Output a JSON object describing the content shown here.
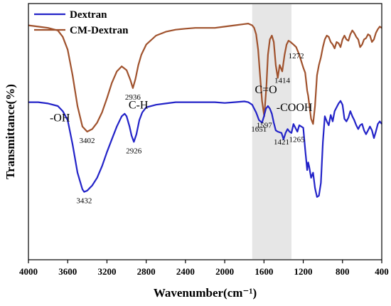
{
  "chart_data": {
    "type": "line",
    "title": "",
    "xlabel": "Wavenumber(cm⁻¹)",
    "ylabel": "Transmittance(%)",
    "xlim": [
      4000,
      400
    ],
    "x_reversed": true,
    "x_ticks": [
      4000,
      3600,
      3200,
      2800,
      2400,
      2000,
      1600,
      1200,
      800,
      400
    ],
    "y_axis": "arbitrary transmittance units, stacked curves, no numeric ticks",
    "ylim": [
      0,
      100
    ],
    "grid": false,
    "legend_position": "top-left",
    "highlight_band": {
      "x_from": 1720,
      "x_to": 1320,
      "color": "#e6e6e6"
    },
    "series": [
      {
        "name": "CM-Dextran",
        "color": "#a0522d",
        "x": [
          4000,
          3900,
          3800,
          3700,
          3650,
          3600,
          3550,
          3500,
          3450,
          3402,
          3350,
          3300,
          3250,
          3200,
          3150,
          3100,
          3050,
          3000,
          2960,
          2936,
          2910,
          2880,
          2850,
          2800,
          2700,
          2600,
          2500,
          2400,
          2300,
          2200,
          2100,
          2000,
          1900,
          1800,
          1760,
          1720,
          1700,
          1680,
          1660,
          1640,
          1620,
          1597,
          1575,
          1560,
          1540,
          1520,
          1500,
          1480,
          1460,
          1440,
          1414,
          1390,
          1370,
          1350,
          1330,
          1300,
          1272,
          1240,
          1200,
          1180,
          1160,
          1150,
          1120,
          1100,
          1080,
          1060,
          1040,
          1020,
          1000,
          980,
          960,
          940,
          920,
          900,
          880,
          860,
          840,
          820,
          800,
          780,
          760,
          740,
          720,
          700,
          680,
          660,
          640,
          620,
          600,
          580,
          560,
          540,
          520,
          500,
          480,
          460,
          440,
          420,
          400
        ],
        "y": [
          91.5,
          91.0,
          90.5,
          89.5,
          87.0,
          82.0,
          72.0,
          60.0,
          52.0,
          50.0,
          51.0,
          53.5,
          57.5,
          63.0,
          69.0,
          73.5,
          75.5,
          74.0,
          70.0,
          67.0,
          70.5,
          76.0,
          80.0,
          84.0,
          87.5,
          89.0,
          89.8,
          90.2,
          90.5,
          90.5,
          90.5,
          91.0,
          91.5,
          92.0,
          92.2,
          91.5,
          90.5,
          88.0,
          82.0,
          72.0,
          62.0,
          56.0,
          68.0,
          80.0,
          86.0,
          87.5,
          85.0,
          76.0,
          71.0,
          76.0,
          73.5,
          80.0,
          84.0,
          85.5,
          85.0,
          84.0,
          83.0,
          80.0,
          75.0,
          73.0,
          66.0,
          64.0,
          55.0,
          53.0,
          60.0,
          72.0,
          76.0,
          79.0,
          83.0,
          86.0,
          87.5,
          87.0,
          85.0,
          84.0,
          82.5,
          85.0,
          84.5,
          83.0,
          86.0,
          87.5,
          86.0,
          85.5,
          88.0,
          89.5,
          88.5,
          87.0,
          86.0,
          83.0,
          84.0,
          86.0,
          86.5,
          88.0,
          87.5,
          85.0,
          86.0,
          88.5,
          90.0,
          91.0,
          90.5
        ]
      },
      {
        "name": "Dextran",
        "color": "#2323c8",
        "x": [
          4000,
          3900,
          3800,
          3700,
          3650,
          3600,
          3550,
          3500,
          3450,
          3432,
          3400,
          3350,
          3300,
          3250,
          3200,
          3150,
          3100,
          3050,
          3020,
          3000,
          2970,
          2950,
          2926,
          2900,
          2870,
          2840,
          2800,
          2700,
          2600,
          2500,
          2400,
          2300,
          2200,
          2100,
          2000,
          1900,
          1800,
          1760,
          1720,
          1700,
          1680,
          1651,
          1620,
          1600,
          1580,
          1560,
          1540,
          1520,
          1500,
          1480,
          1460,
          1421,
          1400,
          1380,
          1360,
          1340,
          1320,
          1300,
          1280,
          1260,
          1240,
          1200,
          1180,
          1160,
          1150,
          1140,
          1120,
          1100,
          1080,
          1060,
          1040,
          1020,
          1000,
          980,
          960,
          940,
          920,
          900,
          880,
          860,
          840,
          820,
          800,
          780,
          760,
          740,
          720,
          700,
          680,
          660,
          640,
          620,
          600,
          580,
          560,
          540,
          520,
          500,
          480,
          460,
          440,
          420,
          400
        ],
        "y": [
          61.5,
          61.5,
          61.0,
          60.0,
          58.0,
          54.5,
          45.0,
          34.0,
          27.5,
          26.5,
          27.0,
          29.0,
          32.0,
          36.5,
          42.0,
          47.0,
          52.0,
          56.0,
          57.0,
          56.0,
          52.0,
          48.5,
          46.0,
          49.0,
          54.5,
          57.5,
          59.5,
          60.5,
          61.0,
          61.5,
          61.5,
          61.5,
          61.5,
          61.5,
          61.2,
          61.5,
          61.8,
          61.5,
          60.5,
          59.0,
          57.5,
          54.5,
          53.5,
          56.0,
          59.0,
          60.0,
          59.0,
          57.0,
          53.5,
          50.5,
          50.0,
          49.5,
          47.0,
          49.5,
          51.0,
          50.0,
          49.5,
          53.0,
          51.5,
          50.0,
          52.5,
          51.5,
          43.0,
          35.0,
          38.0,
          36.5,
          32.0,
          34.0,
          28.0,
          24.5,
          25.0,
          30.0,
          46.0,
          56.0,
          54.0,
          52.5,
          56.5,
          54.0,
          58.0,
          59.5,
          61.0,
          62.0,
          60.5,
          55.0,
          54.0,
          55.5,
          58.0,
          56.0,
          54.5,
          52.5,
          51.0,
          52.5,
          53.0,
          50.5,
          49.0,
          50.5,
          52.0,
          50.5,
          47.5,
          50.0,
          53.0,
          54.0,
          53.0
        ]
      }
    ],
    "peak_labels": [
      {
        "text": "3402",
        "series": "CM-Dextran",
        "x": 3402
      },
      {
        "text": "2936",
        "series": "CM-Dextran",
        "x": 2936
      },
      {
        "text": "1597",
        "series": "CM-Dextran",
        "x": 1597
      },
      {
        "text": "1414",
        "series": "CM-Dextran",
        "x": 1414
      },
      {
        "text": "1272",
        "series": "CM-Dextran",
        "x": 1272
      },
      {
        "text": "3432",
        "series": "Dextran",
        "x": 3432
      },
      {
        "text": "2926",
        "series": "Dextran",
        "x": 2926
      },
      {
        "text": "1651",
        "series": "Dextran",
        "x": 1651
      },
      {
        "text": "1421",
        "series": "Dextran",
        "x": 1421
      },
      {
        "text": "1265",
        "series": "Dextran",
        "x": 1265
      }
    ],
    "group_labels": [
      {
        "text": "-OH",
        "x": 3680,
        "y": 54
      },
      {
        "text": "C-H",
        "x": 2880,
        "y": 59
      },
      {
        "text": "C=O",
        "x": 1580,
        "y": 65
      },
      {
        "text": "-COOH",
        "x": 1290,
        "y": 58
      }
    ]
  }
}
